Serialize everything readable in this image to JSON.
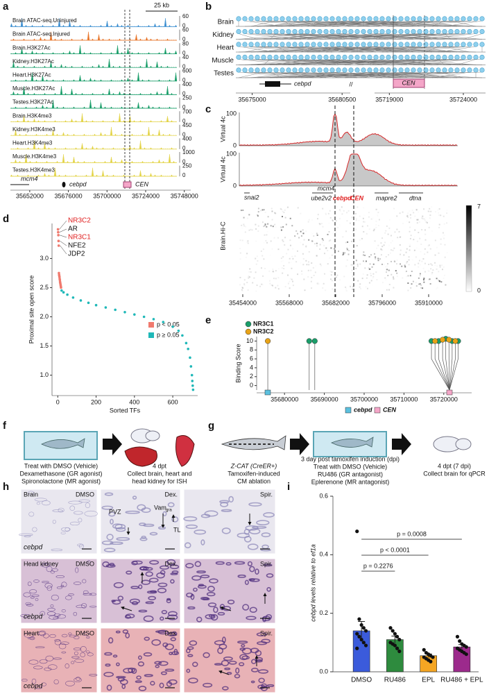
{
  "panel_labels": [
    "a",
    "b",
    "c",
    "d",
    "e",
    "f",
    "g",
    "h",
    "i"
  ],
  "panel_a": {
    "scale_bar": "25 kb",
    "tracks": [
      {
        "name": "Brain ATAC-seq.Uninjured",
        "color": "#3d8fd1",
        "max": 60,
        "min": 0
      },
      {
        "name": "Brain ATAC-seq.Injured",
        "color": "#e8762b",
        "max": 60,
        "min": 0
      },
      {
        "name": "Brain.H3K27Ac",
        "color": "#1a9e6a",
        "max": 80,
        "min": 0
      },
      {
        "name": "Kidney.H3K27Ac",
        "color": "#1a9e6a",
        "max": 40,
        "min": 0
      },
      {
        "name": "Heart.H3K27Ac",
        "color": "#1a9e6a",
        "max": 600,
        "min": 0
      },
      {
        "name": "Muscle.H3K27Ac",
        "color": "#1a9e6a",
        "max": 400,
        "min": 0
      },
      {
        "name": "Testes.H3K27Ac",
        "color": "#1a9e6a",
        "max": 250,
        "min": 0
      },
      {
        "name": "Brain.H3K4me3",
        "color": "#e3d44a",
        "max": 700,
        "min": 0
      },
      {
        "name": "Kidney.H3K4me3",
        "color": "#e3d44a",
        "max": 450,
        "min": 0
      },
      {
        "name": "Heart.H3K4me3",
        "color": "#e3d44a",
        "max": 400,
        "min": 0
      },
      {
        "name": "Muscle.H3K4me3",
        "color": "#e3d44a",
        "max": 1000,
        "min": 0
      },
      {
        "name": "Testes.H3K4me3",
        "color": "#e3d44a",
        "max": 250,
        "min": 0
      }
    ],
    "genes": [
      "mcm4",
      "cebpd",
      "CEN"
    ],
    "xlim": [
      35640000,
      35752000
    ],
    "xticks": [
      35652000,
      35676000,
      35700000,
      35724000,
      35748000
    ]
  },
  "panel_b": {
    "tissues": [
      "Brain",
      "Kidney",
      "Heart",
      "Muscle",
      "Testes"
    ],
    "genes": [
      "cebpd",
      "CEN"
    ],
    "break": "//",
    "xticks": [
      35675000,
      35680500,
      35719000,
      35724000
    ]
  },
  "panel_c": {
    "tracks": [
      {
        "ylabel": "Virtual 4c",
        "ymax": 100,
        "ymin": 0
      },
      {
        "ylabel": "Virtual 4c",
        "ymax": 100,
        "ymin": 0
      }
    ],
    "genes": [
      {
        "name": "snai2",
        "color": "#111"
      },
      {
        "name": "mcm4",
        "color": "#111"
      },
      {
        "name": "ube2v2",
        "color": "#111"
      },
      {
        "name": "cebpd",
        "color": "#e02020"
      },
      {
        "name": "CEN",
        "color": "#e02020"
      },
      {
        "name": "mapre2",
        "color": "#111"
      },
      {
        "name": "dtna",
        "color": "#111"
      }
    ],
    "hic_label": "Brain.Hi-C",
    "colorbar_max": 7,
    "colorbar_min": 0,
    "xlim": [
      35420000,
      35990000
    ],
    "xticks": [
      35454000,
      35568000,
      35682000,
      35796000,
      35910000
    ]
  },
  "chart_data": [
    {
      "type": "scatter",
      "ylabel": "Proximal site open score",
      "xlabel": "Sorted TFs",
      "xlim": [
        -30,
        730
      ],
      "ylim": [
        0.65,
        3.6
      ],
      "xticks": [
        0,
        200,
        400,
        600
      ],
      "yticks": [
        {
          "value": 1,
          "label": "1.0"
        },
        {
          "value": 1.5,
          "label": "1.5"
        },
        {
          "value": 2,
          "label": "2.0"
        },
        {
          "value": 2.5,
          "label": "2.5"
        },
        {
          "value": 3,
          "label": "3.0"
        }
      ],
      "series": [
        {
          "name": "p < 0.05",
          "color": "#f07a6e",
          "x": [
            1,
            2,
            3,
            4,
            5,
            6,
            7,
            8,
            9,
            10,
            11,
            12,
            13,
            14,
            15,
            16,
            17
          ],
          "values": [
            3.5,
            3.45,
            3.4,
            3.3,
            3.22,
            2.75,
            2.72,
            2.7,
            2.68,
            2.65,
            2.63,
            2.6,
            2.58,
            2.56,
            2.54,
            2.52,
            2.5
          ]
        },
        {
          "name": "p ≥ 0.05",
          "color": "#1fb8b8",
          "x": [
            20,
            30,
            50,
            80,
            120,
            160,
            200,
            250,
            300,
            350,
            400,
            450,
            500,
            550,
            600,
            630,
            650,
            670,
            680,
            690,
            695,
            700,
            702,
            704,
            706
          ],
          "values": [
            2.45,
            2.42,
            2.38,
            2.33,
            2.28,
            2.24,
            2.2,
            2.16,
            2.12,
            2.08,
            2.04,
            2.0,
            1.96,
            1.91,
            1.83,
            1.76,
            1.68,
            1.55,
            1.45,
            1.3,
            1.15,
            1.0,
            0.9,
            0.82,
            0.75
          ]
        }
      ],
      "annotations": [
        {
          "text": "NR3C2",
          "color": "#e02020"
        },
        {
          "text": "AR",
          "color": "#111"
        },
        {
          "text": "NR3C1",
          "color": "#e02020"
        },
        {
          "text": "NFE2",
          "color": "#111"
        },
        {
          "text": "JDP2",
          "color": "#111"
        }
      ]
    },
    {
      "type": "lollipop",
      "ylabel": "Binding Score",
      "ylim": [
        -1,
        11
      ],
      "yticks": [
        0,
        2,
        4,
        6,
        8,
        10
      ],
      "xlim": [
        35673000,
        35727000
      ],
      "xticks": [
        35680000,
        35690000,
        35700000,
        35710000,
        35720000
      ],
      "series": [
        {
          "name": "NR3C1",
          "color": "#1a9e6a",
          "x": [
            35686200,
            35687600,
            35716900,
            35718700,
            35720500,
            35722100,
            35723600
          ],
          "values": [
            10,
            10,
            10,
            10,
            10.5,
            10,
            10
          ]
        },
        {
          "name": "NR3C2",
          "color": "#e8a317",
          "x": [
            35675800,
            35717800,
            35719700,
            35721300,
            35722900
          ],
          "values": [
            10,
            10,
            10.3,
            10.3,
            10
          ]
        }
      ],
      "genes": [
        {
          "name": "cebpd",
          "color": "#5bc0de"
        },
        {
          "name": "CEN",
          "color": "#f4a6c8"
        }
      ]
    },
    {
      "type": "bar",
      "ylabel": "cebpd levels relative to ef1a",
      "categories": [
        "DMSO",
        "RU486",
        "EPL",
        "RU486 + EPL"
      ],
      "values": [
        0.14,
        0.11,
        0.055,
        0.085
      ],
      "errors": [
        0.032,
        0.012,
        0.006,
        0.008
      ],
      "colors": [
        "#3b5bdb",
        "#2e8b3e",
        "#f5a623",
        "#9c2a8c"
      ],
      "points": [
        [
          0.48,
          0.18,
          0.16,
          0.15,
          0.14,
          0.13,
          0.12,
          0.11,
          0.1,
          0.09,
          0.08
        ],
        [
          0.15,
          0.14,
          0.13,
          0.12,
          0.11,
          0.1,
          0.095,
          0.09,
          0.08,
          0.07
        ],
        [
          0.075,
          0.065,
          0.06,
          0.055,
          0.05,
          0.05,
          0.045,
          0.04,
          0.035
        ],
        [
          0.12,
          0.105,
          0.095,
          0.09,
          0.085,
          0.08,
          0.075,
          0.07,
          0.065,
          0.06
        ]
      ],
      "ylim": [
        0,
        0.6
      ],
      "yticks": [
        {
          "value": 0,
          "label": "0.0"
        },
        {
          "value": 0.2,
          "label": "0.2"
        },
        {
          "value": 0.4,
          "label": "0.4"
        },
        {
          "value": 0.6,
          "label": "0.6"
        }
      ],
      "comparisons": [
        {
          "label": "p = 0.0008",
          "groups": [
            "DMSO",
            "RU486 + EPL"
          ]
        },
        {
          "label": "p < 0.0001",
          "groups": [
            "DMSO",
            "EPL"
          ]
        },
        {
          "label": "p = 0.2276",
          "groups": [
            "DMSO",
            "RU486"
          ]
        }
      ]
    }
  ],
  "panel_f": {
    "treatment": [
      "Treat with DMSO (Vehicle)",
      "Dexamethasone (GR agonist)",
      "Spironolactone (MR agonist)"
    ],
    "collect": [
      "4 dpt",
      "Collect brain, heart and",
      "head kidney for ISH"
    ]
  },
  "panel_g": {
    "model": [
      "Z-CAT (CreER+)",
      "Tamoxifen-induced",
      "CM ablation"
    ],
    "treatment": [
      "3 day post tamoxifen induction (dpi)",
      "Treat with DMSO (Vehicle)",
      "RU486 (GR antagonist)",
      "Eplerenone (MR antagonist)"
    ],
    "collect": [
      "4 dpt (7 dpi)",
      "Collect brain for qPCR"
    ]
  },
  "panel_h": {
    "rows": [
      {
        "tissue": "Brain",
        "gene": "cebpd",
        "treatments": [
          "DMSO",
          "Dex.",
          "Spir."
        ]
      },
      {
        "tissue": "Head kidney",
        "gene": "cebpd",
        "treatments": [
          "DMSO",
          "Dex.",
          "Spir."
        ]
      },
      {
        "tissue": "Heart",
        "gene": "cebpd",
        "treatments": [
          "DMSO",
          "Dex.",
          "Spir."
        ]
      }
    ],
    "regions": {
      "pvz": "PVZ",
      "vam": "Vam",
      "vam_sub": "gra",
      "tl": "TL"
    }
  }
}
